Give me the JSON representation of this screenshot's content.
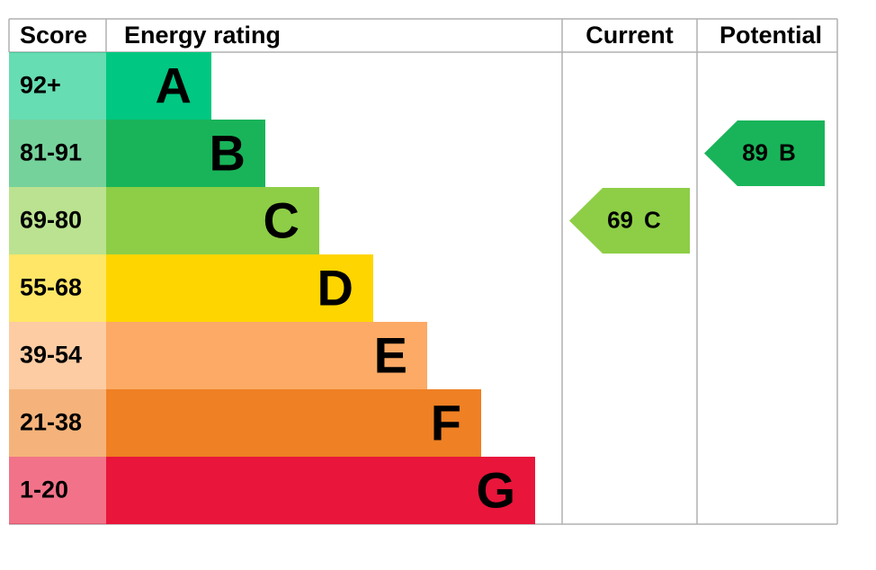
{
  "headers": {
    "score": "Score",
    "rating": "Energy rating",
    "current": "Current",
    "potential": "Potential"
  },
  "bands": [
    {
      "score": "92+",
      "letter": "A",
      "color": "#00c781"
    },
    {
      "score": "81-91",
      "letter": "B",
      "color": "#19b459"
    },
    {
      "score": "69-80",
      "letter": "C",
      "color": "#8dce46"
    },
    {
      "score": "55-68",
      "letter": "D",
      "color": "#ffd500"
    },
    {
      "score": "39-54",
      "letter": "E",
      "color": "#fcaa65"
    },
    {
      "score": "21-38",
      "letter": "F",
      "color": "#ef8023"
    },
    {
      "score": "1-20",
      "letter": "G",
      "color": "#e9153b"
    }
  ],
  "current": {
    "value": 69,
    "letter": "C"
  },
  "potential": {
    "value": 89,
    "letter": "B"
  }
}
